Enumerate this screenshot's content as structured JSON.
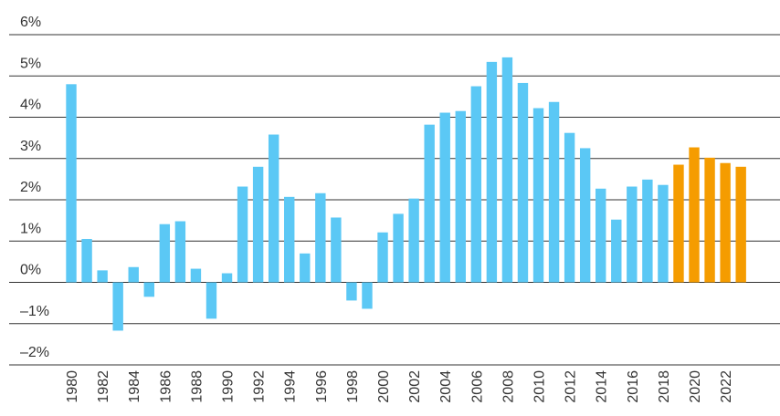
{
  "chart_data": {
    "type": "bar",
    "categories": [
      "1980",
      null,
      "1982",
      null,
      "1984",
      null,
      "1986",
      null,
      "1988",
      null,
      "1990",
      null,
      "1992",
      null,
      "1994",
      null,
      "1996",
      null,
      "1998",
      null,
      "2000",
      null,
      "2002",
      null,
      "2004",
      null,
      "2006",
      null,
      "2008",
      null,
      "2010",
      null,
      "2012",
      null,
      "2014",
      null,
      "2016",
      null,
      "2018",
      null,
      "2020",
      null,
      "2022",
      null
    ],
    "values": [
      4.8,
      1.05,
      0.29,
      -1.17,
      0.37,
      -0.35,
      1.41,
      1.48,
      0.33,
      -0.88,
      0.22,
      2.32,
      2.8,
      3.58,
      2.07,
      0.7,
      2.16,
      1.57,
      -0.44,
      -0.64,
      1.21,
      1.66,
      2.03,
      3.82,
      4.11,
      4.15,
      4.75,
      5.34,
      5.45,
      4.83,
      4.22,
      4.37,
      3.62,
      3.25,
      2.27,
      1.52,
      2.32,
      2.49,
      2.36,
      2.85,
      3.27,
      3.02,
      2.89,
      2.8
    ],
    "colors": [
      "#5bc8f5",
      "#5bc8f5",
      "#5bc8f5",
      "#5bc8f5",
      "#5bc8f5",
      "#5bc8f5",
      "#5bc8f5",
      "#5bc8f5",
      "#5bc8f5",
      "#5bc8f5",
      "#5bc8f5",
      "#5bc8f5",
      "#5bc8f5",
      "#5bc8f5",
      "#5bc8f5",
      "#5bc8f5",
      "#5bc8f5",
      "#5bc8f5",
      "#5bc8f5",
      "#5bc8f5",
      "#5bc8f5",
      "#5bc8f5",
      "#5bc8f5",
      "#5bc8f5",
      "#5bc8f5",
      "#5bc8f5",
      "#5bc8f5",
      "#5bc8f5",
      "#5bc8f5",
      "#5bc8f5",
      "#5bc8f5",
      "#5bc8f5",
      "#5bc8f5",
      "#5bc8f5",
      "#5bc8f5",
      "#5bc8f5",
      "#5bc8f5",
      "#5bc8f5",
      "#5bc8f5",
      "#f59c00",
      "#f59c00",
      "#f59c00",
      "#f59c00",
      "#f59c00"
    ],
    "ylim": [
      -2,
      6
    ],
    "yticks": [
      {
        "value": -2,
        "label": "–2%"
      },
      {
        "value": -1,
        "label": "–1%"
      },
      {
        "value": 0,
        "label": "0%"
      },
      {
        "value": 1,
        "label": "1%"
      },
      {
        "value": 2,
        "label": "2%"
      },
      {
        "value": 3,
        "label": "3%"
      },
      {
        "value": 4,
        "label": "4%"
      },
      {
        "value": 5,
        "label": "5%"
      },
      {
        "value": 6,
        "label": "6%"
      }
    ],
    "grid": true
  }
}
